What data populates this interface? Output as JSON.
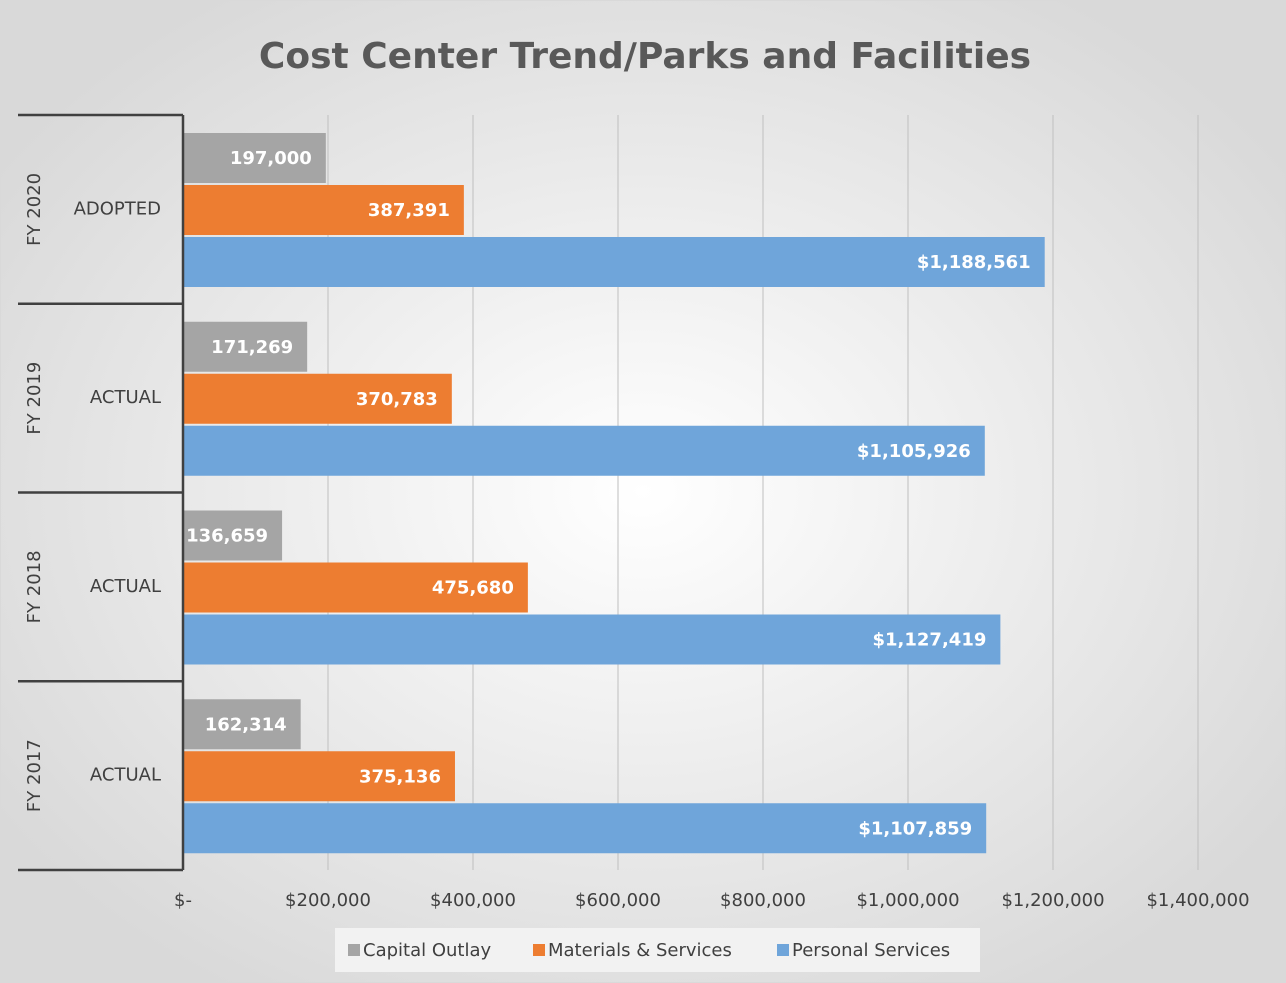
{
  "chart_data": {
    "type": "bar",
    "orientation": "horizontal",
    "title": "Cost Center Trend/Parks and Facilities",
    "categories": [
      "FY 2020",
      "FY 2019",
      "FY 2018",
      "FY 2017"
    ],
    "subcategories": [
      "ADOPTED",
      "ACTUAL",
      "ACTUAL",
      "ACTUAL"
    ],
    "series": [
      {
        "name": "Capital Outlay",
        "color": "#a5a5a5",
        "values": [
          197000,
          171269,
          136659,
          162314
        ],
        "value_labels": [
          "197,000",
          "171,269",
          "136,659",
          "162,314"
        ]
      },
      {
        "name": "Materials & Services",
        "color": "#ed7d31",
        "values": [
          387391,
          370783,
          475680,
          375136
        ],
        "value_labels": [
          "387,391",
          "370,783",
          "475,680",
          "375,136"
        ]
      },
      {
        "name": "Personal Services",
        "color": "#6fa5da",
        "values": [
          1188561,
          1105926,
          1127419,
          1107859
        ],
        "value_labels": [
          "$1,188,561",
          "$1,105,926",
          "$1,127,419",
          "$1,107,859"
        ]
      }
    ],
    "xlim": [
      0,
      1400000
    ],
    "xticks": [
      {
        "value": 0,
        "label": "$-"
      },
      {
        "value": 200000,
        "label": "$200,000"
      },
      {
        "value": 400000,
        "label": "$400,000"
      },
      {
        "value": 600000,
        "label": "$600,000"
      },
      {
        "value": 800000,
        "label": "$800,000"
      },
      {
        "value": 1000000,
        "label": "$1,000,000"
      },
      {
        "value": 1200000,
        "label": "$1,200,000"
      },
      {
        "value": 1400000,
        "label": "$1,400,000"
      }
    ],
    "grid": true,
    "legend": "bottom"
  }
}
